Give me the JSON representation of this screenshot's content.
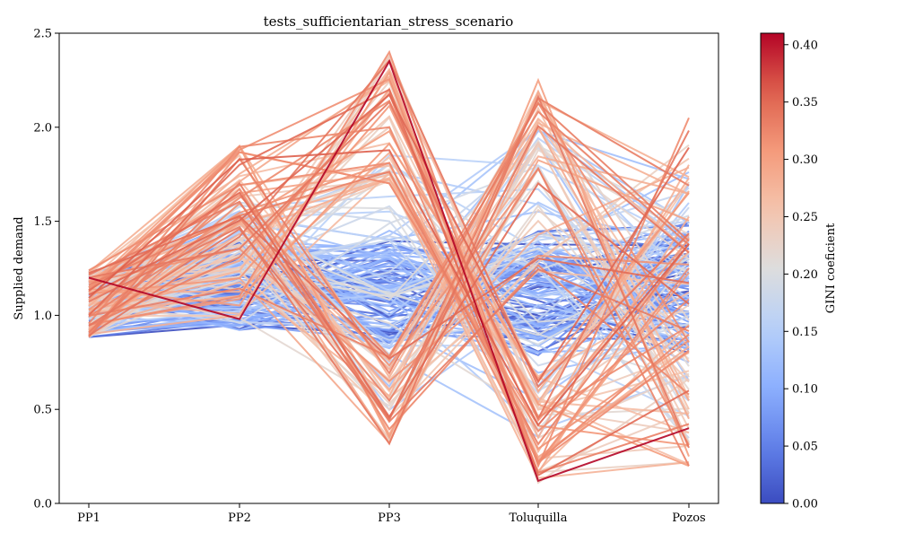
{
  "chart_data": {
    "type": "line",
    "title": "tests_sufficientarian_stress_scenario",
    "xlabel": "",
    "ylabel": "Supplied demand",
    "categories": [
      "PP1",
      "PP2",
      "PP3",
      "Toluquilla",
      "Pozos"
    ],
    "ylim": [
      0,
      2.5
    ],
    "yticks": [
      "0.0",
      "0.5",
      "1.0",
      "1.5",
      "2.0",
      "2.5"
    ],
    "grid": false,
    "colorbar": {
      "label": "GINI coeficient",
      "colormap": "coolwarm",
      "range": [
        0,
        0.41
      ],
      "ticks": [
        "0.00",
        "0.05",
        "0.10",
        "0.15",
        "0.20",
        "0.25",
        "0.30",
        "0.35",
        "0.40"
      ]
    },
    "series_count": 200,
    "series": [
      {
        "values": [
          1.08,
          1.25,
          1.18,
          0.98,
          1.12
        ],
        "gini": 0.02
      },
      {
        "values": [
          1.02,
          1.15,
          1.22,
          1.05,
          0.95
        ],
        "gini": 0.04
      },
      {
        "values": [
          1.15,
          1.1,
          1.05,
          0.87,
          1.3
        ],
        "gini": 0.06
      },
      {
        "values": [
          0.95,
          1.0,
          1.3,
          1.2,
          1.05
        ],
        "gini": 0.08
      },
      {
        "values": [
          1.2,
          1.3,
          1.1,
          1.35,
          0.9
        ],
        "gini": 0.1
      },
      {
        "values": [
          1.0,
          1.05,
          1.45,
          1.1,
          0.75
        ],
        "gini": 0.12
      },
      {
        "values": [
          1.1,
          1.5,
          1.0,
          1.6,
          1.2
        ],
        "gini": 0.14
      },
      {
        "values": [
          1.05,
          1.35,
          0.75,
          1.4,
          1.5
        ],
        "gini": 0.16
      },
      {
        "values": [
          1.18,
          1.6,
          1.5,
          0.6,
          1.0
        ],
        "gini": 0.18
      },
      {
        "values": [
          0.98,
          1.2,
          1.75,
          0.9,
          0.65
        ],
        "gini": 0.2
      },
      {
        "values": [
          1.12,
          1.7,
          0.55,
          1.9,
          1.3
        ],
        "gini": 0.22
      },
      {
        "values": [
          0.92,
          1.4,
          2.0,
          0.5,
          0.8
        ],
        "gini": 0.24
      },
      {
        "values": [
          1.22,
          1.85,
          0.45,
          2.1,
          0.5
        ],
        "gini": 0.26
      },
      {
        "values": [
          0.9,
          1.0,
          2.3,
          0.35,
          1.8
        ],
        "gini": 0.28
      },
      {
        "values": [
          1.15,
          1.9,
          0.35,
          2.25,
          0.25
        ],
        "gini": 0.3
      },
      {
        "values": [
          0.95,
          1.1,
          2.4,
          0.2,
          2.05
        ],
        "gini": 0.32
      },
      {
        "values": [
          1.0,
          1.8,
          2.2,
          0.15,
          0.6
        ],
        "gini": 0.35
      },
      {
        "values": [
          1.2,
          0.98,
          2.35,
          0.12,
          0.4
        ],
        "gini": 0.41
      }
    ]
  }
}
